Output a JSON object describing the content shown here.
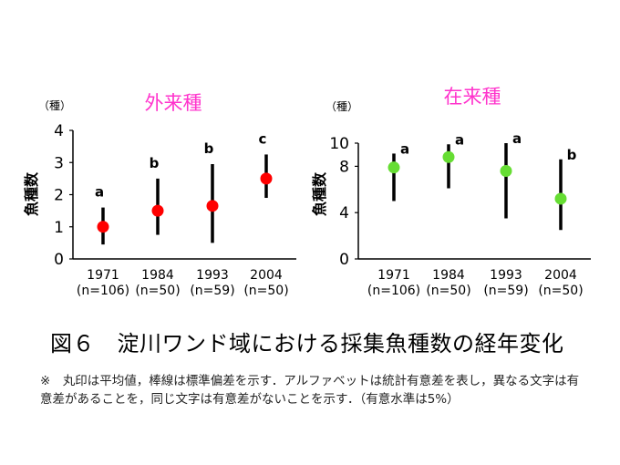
{
  "chart_data": [
    {
      "type": "scatter",
      "title": "外来種",
      "title_color": "#ff33cc",
      "unit_label": "（種）",
      "ylabel": "魚種数",
      "ylim": [
        0,
        4
      ],
      "yticks": [
        "0",
        "1",
        "2",
        "3",
        "4"
      ],
      "categories": [
        "1971\n(n=106)",
        "1984\n(n=50)",
        "1993\n(n=59)",
        "2004\n(n=50)"
      ],
      "x_years": [
        "1971",
        "1984",
        "1993",
        "2004"
      ],
      "x_n": [
        "(n=106)",
        "(n=50)",
        "(n=59)",
        "(n=50)"
      ],
      "point_color": "#ff0000",
      "points": [
        {
          "mean": 1.0,
          "low": 0.45,
          "high": 1.6,
          "label": "a"
        },
        {
          "mean": 1.5,
          "low": 0.75,
          "high": 2.5,
          "label": "b"
        },
        {
          "mean": 1.65,
          "low": 0.5,
          "high": 2.95,
          "label": "b"
        },
        {
          "mean": 2.5,
          "low": 1.9,
          "high": 3.25,
          "label": "c"
        }
      ]
    },
    {
      "type": "scatter",
      "title": "在来種",
      "title_color": "#ff33cc",
      "unit_label": "（種）",
      "ylabel": "魚種数",
      "ylim": [
        0,
        10
      ],
      "yticks": [
        "0",
        "4",
        "8",
        "10"
      ],
      "categories": [
        "1971\n(n=106)",
        "1984\n(n=50)",
        "1993\n(n=59)",
        "2004\n(n=50)"
      ],
      "x_years": [
        "1971",
        "1984",
        "1993",
        "2004"
      ],
      "x_n": [
        "(n=106)",
        "(n=50)",
        "(n=59)",
        "(n=50)"
      ],
      "point_color": "#66dd33",
      "points": [
        {
          "mean": 7.9,
          "low": 5.0,
          "high": 9.1,
          "label": "a"
        },
        {
          "mean": 8.8,
          "low": 6.1,
          "high": 9.9,
          "label": "a"
        },
        {
          "mean": 7.6,
          "low": 3.5,
          "high": 10.0,
          "label": "a"
        },
        {
          "mean": 5.2,
          "low": 2.5,
          "high": 8.6,
          "label": "b"
        }
      ]
    }
  ],
  "caption": "図６　淀川ワンド域における採集魚種数の経年変化",
  "note": "※　丸印は平均値，棒線は標準偏差を示す．アルファベットは統計有意差を表し，異なる文字は有意差があることを，同じ文字は有意差がないことを示す．（有意水準は5%）"
}
